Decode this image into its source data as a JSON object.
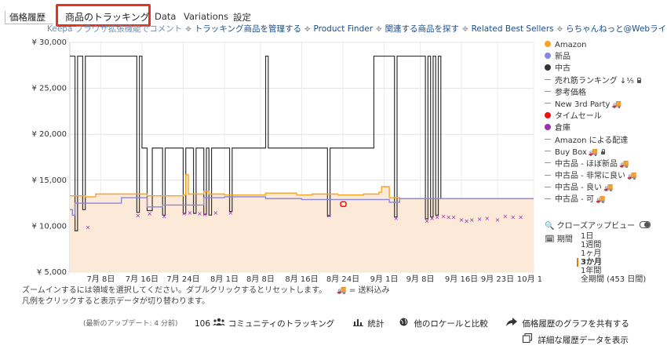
{
  "tabs": [
    "価格履歴",
    "商品のトラッキング",
    "Data",
    "Variations",
    "設定"
  ],
  "links": [
    {
      "text": "Keepa ブラウザ拡張機能でコメント",
      "gray": true
    },
    {
      "text": "トラッキング商品を管理する"
    },
    {
      "text": "Product Finder"
    },
    {
      "text": "関連する商品を探す"
    },
    {
      "text": "Related Best Sellers"
    },
    {
      "text": "らちゃんねっと@Webライター"
    }
  ],
  "legend": [
    {
      "label": "Amazon",
      "kind": "dot",
      "color": "#f5a623"
    },
    {
      "label": "新品",
      "kind": "dot",
      "color": "#8888e0"
    },
    {
      "label": "中古",
      "kind": "dot",
      "color": "#333333"
    },
    {
      "label": "売れ筋ランキング ↓⅕",
      "kind": "dash",
      "lock": true
    },
    {
      "label": "参考価格",
      "kind": "dash"
    },
    {
      "label": "New 3rd Party",
      "kind": "dash",
      "truck": true
    },
    {
      "label": "タイムセール",
      "kind": "dot",
      "color": "#ee1111"
    },
    {
      "label": "倉庫",
      "kind": "dot",
      "color": "#9a2fb5"
    },
    {
      "label": "Amazon による配達",
      "kind": "dash"
    },
    {
      "label": "Buy Box",
      "kind": "dash",
      "truck": true,
      "lock": true
    },
    {
      "label": "中古品 - ほぼ新品",
      "kind": "dash",
      "truck": true
    },
    {
      "label": "中古品 - 非常に良い",
      "kind": "dash",
      "truck": true
    },
    {
      "label": "中古品 - 良い",
      "kind": "dash",
      "truck": true
    },
    {
      "label": "中古品 - 可",
      "kind": "dash",
      "truck": true
    }
  ],
  "zoom_label": "クローズアップビュー",
  "period_label": "期間",
  "periods": [
    "1日",
    "1週間",
    "1ヶ月",
    "3か月",
    "1年間",
    "全期間 (453 日間)"
  ],
  "period_selected": "3か月",
  "notes": [
    "ズームインするには領域を選択してください。ダブルクリックするとリセットします。",
    "凡例をクリックすると表示データが切り替わります。"
  ],
  "truck_note": "= 送料込み",
  "truck_glyph": "🚚",
  "footer": {
    "last_update": "(最新のアップデート: 4 分前)",
    "community_count": "106",
    "community_label": "コミュニティのトラッキング",
    "stats_label": "統計",
    "locale_label": "他のロケールと比較",
    "share_label": "価格履歴のグラフを共有する",
    "detail_label": "詳細な履歴データを表示"
  },
  "chart_data": {
    "type": "line",
    "y_ticks": [
      "¥ 30,000",
      "¥ 25,000",
      "¥ 20,000",
      "¥ 15,000",
      "¥ 10,000",
      "¥ 5,000"
    ],
    "ylim": [
      5000,
      30000
    ],
    "x_ticks": [
      "7月 8日",
      "7月 16日",
      "7月 24日",
      "8月 1日",
      "8月 8日",
      "8月 16日",
      "8月 24日",
      "9月 1日",
      "9月 8日",
      "9月 16日",
      "9月 23日",
      "10月 1日"
    ],
    "xlim": [
      0,
      90
    ],
    "x_tick_days": [
      6,
      14,
      22,
      30,
      37,
      45,
      53,
      61,
      68,
      76,
      83,
      91
    ],
    "series": [
      {
        "name": "Amazon",
        "color": "#f5a623",
        "points": [
          [
            0,
            13300
          ],
          [
            3,
            13200
          ],
          [
            5,
            13500
          ],
          [
            15,
            13300
          ],
          [
            22,
            13400
          ],
          [
            22.5,
            15600
          ],
          [
            23,
            13500
          ],
          [
            26,
            13800
          ],
          [
            27,
            13500
          ],
          [
            30,
            13400
          ],
          [
            38,
            13600
          ],
          [
            44,
            13400
          ],
          [
            47,
            13500
          ],
          [
            52,
            13400
          ],
          [
            57,
            13500
          ],
          [
            60,
            13700
          ],
          [
            60.5,
            14300
          ],
          [
            62,
            13100
          ],
          [
            64,
            13000
          ],
          [
            90,
            13000
          ]
        ]
      },
      {
        "name": "新品",
        "color": "#8888e0",
        "points": [
          [
            0,
            11800
          ],
          [
            0.5,
            11200
          ],
          [
            1,
            12500
          ],
          [
            7,
            12500
          ],
          [
            10,
            13100
          ],
          [
            15,
            12100
          ],
          [
            18,
            12300
          ],
          [
            26,
            13100
          ],
          [
            30,
            13200
          ],
          [
            38,
            13000
          ],
          [
            45,
            12900
          ],
          [
            52,
            12900
          ],
          [
            57,
            12900
          ],
          [
            62,
            12600
          ],
          [
            64,
            13000
          ],
          [
            90,
            13000
          ]
        ]
      },
      {
        "name": "中古",
        "color": "#333333",
        "points": [
          [
            0,
            28500
          ],
          [
            1,
            28500
          ],
          [
            1,
            9500
          ],
          [
            1.5,
            9500
          ],
          [
            1.5,
            28500
          ],
          [
            2.5,
            28500
          ],
          [
            2.5,
            11800
          ],
          [
            3,
            11800
          ],
          [
            3,
            28500
          ],
          [
            13,
            28500
          ],
          [
            13,
            11500
          ],
          [
            13.5,
            11500
          ],
          [
            13.5,
            28500
          ],
          [
            14,
            28500
          ],
          [
            14,
            18500
          ],
          [
            15,
            18500
          ],
          [
            15,
            11700
          ],
          [
            16,
            11700
          ],
          [
            16,
            18500
          ],
          [
            18,
            18500
          ],
          [
            18,
            11200
          ],
          [
            18.5,
            11200
          ],
          [
            18.5,
            18500
          ],
          [
            22,
            18500
          ],
          [
            22,
            11400
          ],
          [
            22.5,
            11400
          ],
          [
            22.5,
            18500
          ],
          [
            24,
            18500
          ],
          [
            24,
            11400
          ],
          [
            24.5,
            11400
          ],
          [
            24.5,
            18500
          ],
          [
            26,
            18500
          ],
          [
            26,
            11300
          ],
          [
            26.5,
            11300
          ],
          [
            26.5,
            18500
          ],
          [
            27,
            18500
          ],
          [
            27,
            11200
          ],
          [
            27.5,
            11200
          ],
          [
            27.5,
            18500
          ],
          [
            31,
            18500
          ],
          [
            31,
            11600
          ],
          [
            31.5,
            11600
          ],
          [
            31.5,
            18500
          ],
          [
            38,
            18500
          ],
          [
            38,
            28500
          ],
          [
            38.5,
            28500
          ],
          [
            38.5,
            18500
          ],
          [
            50,
            18500
          ],
          [
            50,
            11100
          ],
          [
            50.5,
            11100
          ],
          [
            50.5,
            18500
          ],
          [
            59,
            18500
          ],
          [
            59,
            28500
          ],
          [
            63,
            28500
          ],
          [
            63,
            11000
          ],
          [
            63.5,
            11000
          ],
          [
            63.5,
            28500
          ],
          [
            69,
            28500
          ],
          [
            69,
            10800
          ],
          [
            69.5,
            10800
          ],
          [
            69.5,
            28500
          ],
          [
            70,
            28500
          ],
          [
            70,
            11000
          ],
          [
            70.5,
            11000
          ],
          [
            70.5,
            28500
          ],
          [
            71,
            28500
          ],
          [
            71,
            11200
          ],
          [
            71.5,
            11200
          ],
          [
            71.5,
            28500
          ],
          [
            72,
            28500
          ],
          [
            72,
            13000
          ],
          [
            90,
            13000
          ]
        ]
      }
    ],
    "warehouse_points": [
      [
        3.5,
        9900
      ],
      [
        13.2,
        11200
      ],
      [
        15.5,
        11400
      ],
      [
        18.3,
        11100
      ],
      [
        22.2,
        11400
      ],
      [
        23.3,
        11500
      ],
      [
        25.2,
        11400
      ],
      [
        26.2,
        11300
      ],
      [
        28.3,
        11500
      ],
      [
        31.2,
        11500
      ],
      [
        50.3,
        11200
      ],
      [
        63.3,
        10900
      ],
      [
        69.3,
        10600
      ],
      [
        70.3,
        10900
      ],
      [
        71.3,
        11000
      ],
      [
        72.5,
        11100
      ],
      [
        73.5,
        11000
      ],
      [
        74.5,
        11000
      ],
      [
        76,
        10700
      ],
      [
        77,
        10600
      ],
      [
        78,
        10700
      ],
      [
        79.5,
        10800
      ],
      [
        81,
        10900
      ],
      [
        83,
        10700
      ],
      [
        84.5,
        11100
      ],
      [
        86,
        11000
      ],
      [
        87.5,
        11000
      ]
    ],
    "lightning_deal_points": [
      [
        53,
        12400
      ]
    ],
    "grid": true
  }
}
